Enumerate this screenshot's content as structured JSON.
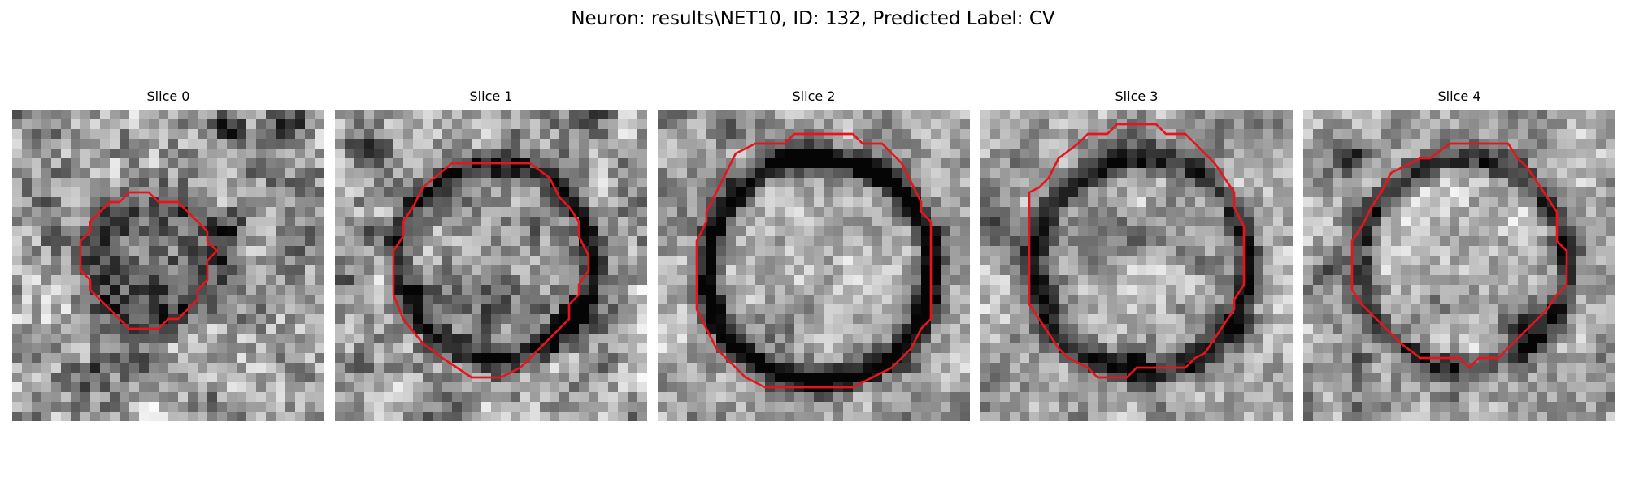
{
  "figure": {
    "title": "Neuron: results\\NET10, ID: 132, Predicted Label: CV",
    "contour_color": "#e8141b"
  },
  "slices": [
    {
      "title": "Slice 0"
    },
    {
      "title": "Slice 1"
    },
    {
      "title": "Slice 2"
    },
    {
      "title": "Slice 3"
    },
    {
      "title": "Slice 4"
    }
  ]
}
